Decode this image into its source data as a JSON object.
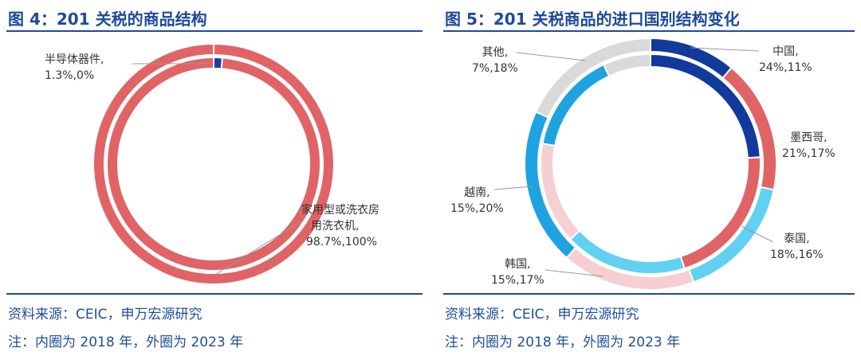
{
  "left": {
    "title": "图 4：201 关税的商品结构",
    "source": "资料来源：CEIC，申万宏源研究",
    "note": "注：内圈为 2018 年，外圈为 2023 年",
    "labels": [
      {
        "name": "半导体器件,",
        "value": "1.3%,0%"
      },
      {
        "name1": "家用型或洗衣房",
        "name2": "用洗衣机,",
        "value": "98.7%,100%"
      }
    ]
  },
  "right": {
    "title": "图 5：201 关税商品的进口国别结构变化",
    "source": "资料来源：CEIC，申万宏源研究",
    "note": "注：内圈为 2018 年，外圈为 2023 年",
    "labels": [
      {
        "name": "中国,",
        "value": "24%,11%"
      },
      {
        "name": "墨西哥,",
        "value": "21%,17%"
      },
      {
        "name": "泰国,",
        "value": "18%,16%"
      },
      {
        "name": "韩国,",
        "value": "15%,17%"
      },
      {
        "name": "越南,",
        "value": "15%,20%"
      },
      {
        "name": "其他,",
        "value": "7%,18%"
      }
    ]
  },
  "chart_data": [
    {
      "type": "pie",
      "subtype": "double-donut",
      "rings": [
        "2018 (inner)",
        "2023 (outer)"
      ],
      "categories": [
        "半导体器件",
        "家用型或洗衣房用洗衣机"
      ],
      "series": [
        {
          "values": [
            1.3,
            98.7
          ]
        },
        {
          "values": [
            0,
            100
          ]
        }
      ],
      "colors": [
        "#1f3f9e",
        "#e06466"
      ]
    },
    {
      "type": "pie",
      "subtype": "double-donut",
      "rings": [
        "2018 (inner)",
        "2023 (outer)"
      ],
      "categories": [
        "中国",
        "墨西哥",
        "泰国",
        "韩国",
        "越南",
        "其他"
      ],
      "series": [
        {
          "values": [
            24,
            21,
            18,
            15,
            15,
            7
          ]
        },
        {
          "values": [
            11,
            17,
            16,
            17,
            20,
            18
          ]
        }
      ],
      "colors": [
        "#113a9c",
        "#e06466",
        "#62d0f2",
        "#f6cfd3",
        "#1fa3e0",
        "#d9d9d9"
      ]
    }
  ]
}
